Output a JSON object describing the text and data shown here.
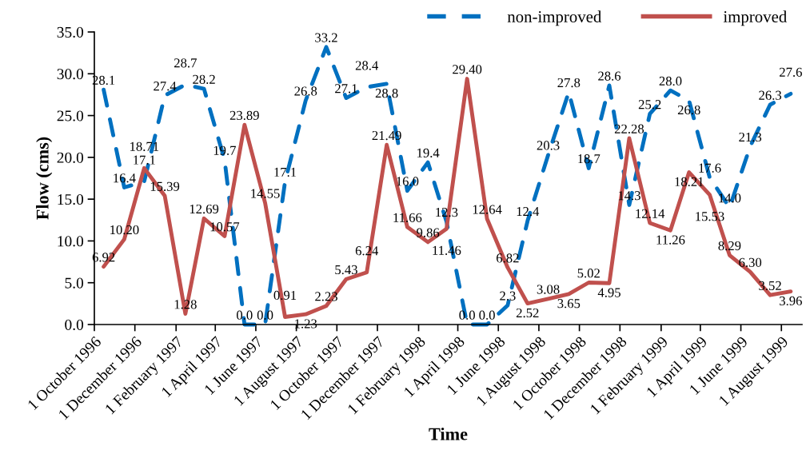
{
  "chart_data": {
    "type": "line",
    "xlabel": "Time",
    "ylabel": "Flow (cms)",
    "x": [
      "1996-10-15",
      "1996-11-15",
      "1996-12-15",
      "1997-01-15",
      "1997-02-15",
      "1997-03-15",
      "1997-04-15",
      "1997-05-15",
      "1997-06-15",
      "1997-07-15",
      "1997-08-15",
      "1997-09-15",
      "1997-10-15",
      "1997-11-15",
      "1997-12-15",
      "1998-01-15",
      "1998-02-15",
      "1998-03-15",
      "1998-04-15",
      "1998-05-15",
      "1998-06-15",
      "1998-07-15",
      "1998-08-15",
      "1998-09-15",
      "1998-10-15",
      "1998-11-15",
      "1998-12-15",
      "1999-01-15",
      "1999-02-15",
      "1999-03-15",
      "1999-04-15",
      "1999-05-15",
      "1999-06-15",
      "1999-07-15",
      "1999-08-15"
    ],
    "series": [
      {
        "name": "non-improved",
        "color": "#0070c0",
        "line_style": "dashed",
        "values": [
          28.1,
          16.4,
          17.1,
          27.4,
          28.7,
          28.2,
          19.7,
          0.0,
          0.0,
          17.1,
          26.8,
          33.2,
          27.1,
          28.4,
          28.8,
          16.0,
          19.4,
          12.3,
          0.0,
          0.0,
          2.3,
          12.4,
          20.3,
          27.8,
          18.7,
          28.6,
          14.3,
          25.2,
          28.0,
          26.8,
          17.6,
          14.0,
          21.3,
          26.3,
          27.6
        ],
        "value_labels": [
          "28.1",
          "16.4",
          "17.1",
          "27.4",
          "28.7",
          "28.2",
          "19.7",
          "0.0",
          "0.0",
          "17.1",
          "26.8",
          "33.2",
          "27.1",
          "28.4",
          "28.8",
          "16.0",
          "19.4",
          "12.3",
          "0.0",
          "0.0",
          "2.3",
          "12.4",
          "20.3",
          "27.8",
          "18.7",
          "28.6",
          "14.3",
          "25.2",
          "28.0",
          "26.8",
          "17.6",
          "14.0",
          "21.3",
          "26.3",
          "27.6"
        ]
      },
      {
        "name": "improved",
        "color": "#c0504d",
        "line_style": "solid",
        "values": [
          6.92,
          10.2,
          18.71,
          15.39,
          1.28,
          12.69,
          10.57,
          23.89,
          14.55,
          0.91,
          1.23,
          2.23,
          5.43,
          6.24,
          21.49,
          11.66,
          9.86,
          11.46,
          29.4,
          12.64,
          6.82,
          2.52,
          3.08,
          3.65,
          5.02,
          4.95,
          22.28,
          12.14,
          11.26,
          18.21,
          15.53,
          8.29,
          6.3,
          3.52,
          3.96
        ],
        "value_labels": [
          "6.92",
          "10.20",
          "18.71",
          "15.39",
          "1.28",
          "12.69",
          "10.57",
          "23.89",
          "14.55",
          "0.91",
          "1.23",
          "2.23",
          "5.43",
          "6.24",
          "21.49",
          "11.66",
          "9.86",
          "11.46",
          "29.40",
          "12.64",
          "6.82",
          "2.52",
          "3.08",
          "3.65",
          "5.02",
          "4.95",
          "22.28",
          "12.14",
          "11.26",
          "18.21",
          "15.53",
          "8.29",
          "6.30",
          "3.52",
          "3.96"
        ]
      }
    ],
    "xlim": [
      "1996-10-01",
      "1999-09-01"
    ],
    "xticks": [
      {
        "value": "1996-10-01",
        "label": "1 October 1996"
      },
      {
        "value": "1996-12-01",
        "label": "1 December 1996"
      },
      {
        "value": "1997-02-01",
        "label": "1 February 1997"
      },
      {
        "value": "1997-04-01",
        "label": "1 April 1997"
      },
      {
        "value": "1997-06-01",
        "label": "1 June 1997"
      },
      {
        "value": "1997-08-01",
        "label": "1 August 1997"
      },
      {
        "value": "1997-10-01",
        "label": "1 October 1997"
      },
      {
        "value": "1997-12-01",
        "label": "1 December 1997"
      },
      {
        "value": "1998-02-01",
        "label": "1 February 1998"
      },
      {
        "value": "1998-04-01",
        "label": "1 April 1998"
      },
      {
        "value": "1998-06-01",
        "label": "1 June 1998"
      },
      {
        "value": "1998-08-01",
        "label": "1 August 1998"
      },
      {
        "value": "1998-10-01",
        "label": "1 October 1998"
      },
      {
        "value": "1998-12-01",
        "label": "1 December 1998"
      },
      {
        "value": "1999-02-01",
        "label": "1 February 1999"
      },
      {
        "value": "1999-04-01",
        "label": "1 April 1999"
      },
      {
        "value": "1999-06-01",
        "label": "1 June 1999"
      },
      {
        "value": "1999-08-01",
        "label": "1 August 1999"
      }
    ],
    "ylim": [
      0,
      35
    ],
    "yticks": [
      {
        "value": 0,
        "label": "0.0"
      },
      {
        "value": 5,
        "label": "5.0"
      },
      {
        "value": 10,
        "label": "10.0"
      },
      {
        "value": 15,
        "label": "15.0"
      },
      {
        "value": 20,
        "label": "20.0"
      },
      {
        "value": 25,
        "label": "25.0"
      },
      {
        "value": 30,
        "label": "30.0"
      },
      {
        "value": 35,
        "label": "35.0"
      }
    ],
    "grid": false,
    "legend": "top right",
    "marker": "none"
  }
}
